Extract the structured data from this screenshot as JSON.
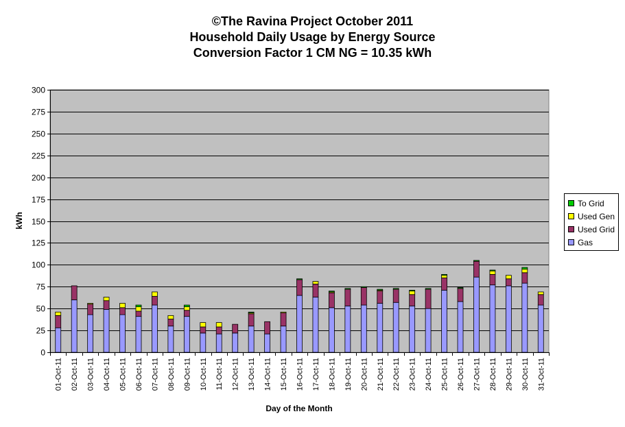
{
  "chart_data": {
    "type": "bar",
    "stacked": true,
    "title": [
      "©The Ravina Project October 2011",
      "Household Daily Usage by Energy Source",
      "Conversion Factor 1 CM NG = 10.35 kWh"
    ],
    "xlabel": "Day of the Month",
    "ylabel": "kWh",
    "ylim": [
      0,
      300
    ],
    "yticks": [
      0,
      25,
      50,
      75,
      100,
      125,
      150,
      175,
      200,
      225,
      250,
      275,
      300
    ],
    "grid": true,
    "legend_position": "right",
    "categories": [
      "01-Oct-11",
      "02-Oct-11",
      "03-Oct-11",
      "04-Oct-11",
      "05-Oct-11",
      "06-Oct-11",
      "07-Oct-11",
      "08-Oct-11",
      "09-Oct-11",
      "10-Oct-11",
      "11-Oct-11",
      "12-Oct-11",
      "13-Oct-11",
      "14-Oct-11",
      "15-Oct-11",
      "16-Oct-11",
      "17-Oct-11",
      "18-Oct-11",
      "19-Oct-11",
      "20-Oct-11",
      "21-Oct-11",
      "22-Oct-11",
      "23-Oct-11",
      "24-Oct-11",
      "25-Oct-11",
      "26-Oct-11",
      "27-Oct-11",
      "28-Oct-11",
      "29-Oct-11",
      "30-Oct-11",
      "31-Oct-11"
    ],
    "series": [
      {
        "name": "Gas",
        "color": "#9999ff",
        "values": [
          28,
          60,
          43,
          49,
          43,
          41,
          54,
          30,
          41,
          22,
          21,
          22,
          30,
          21,
          30,
          65,
          63,
          51,
          53,
          54,
          56,
          57,
          53,
          50,
          71,
          58,
          86,
          77,
          76,
          79,
          54
        ]
      },
      {
        "name": "Used Grid",
        "color": "#993366",
        "values": [
          14,
          16,
          12,
          10,
          8,
          6,
          10,
          8,
          7,
          7,
          8,
          10,
          14,
          14,
          15,
          18,
          15,
          17,
          19,
          20,
          14,
          15,
          13,
          22,
          14,
          15,
          18,
          12,
          8,
          12,
          12
        ]
      },
      {
        "name": "Used Gen",
        "color": "#ffff00",
        "values": [
          4,
          0,
          1,
          4,
          5,
          5,
          5,
          4,
          4,
          5,
          5,
          0,
          1,
          0,
          1,
          0,
          3,
          1,
          0,
          0,
          1,
          0,
          4,
          0,
          3,
          0,
          0,
          4,
          4,
          4,
          3
        ]
      },
      {
        "name": "To Grid",
        "color": "#00cc00",
        "values": [
          0,
          0,
          0,
          0,
          0,
          2,
          0,
          0,
          2,
          0,
          0,
          0,
          1,
          0,
          0,
          1,
          0,
          1,
          1,
          1,
          1,
          1,
          1,
          1,
          1,
          1,
          1,
          1,
          0,
          2,
          0
        ]
      }
    ]
  }
}
